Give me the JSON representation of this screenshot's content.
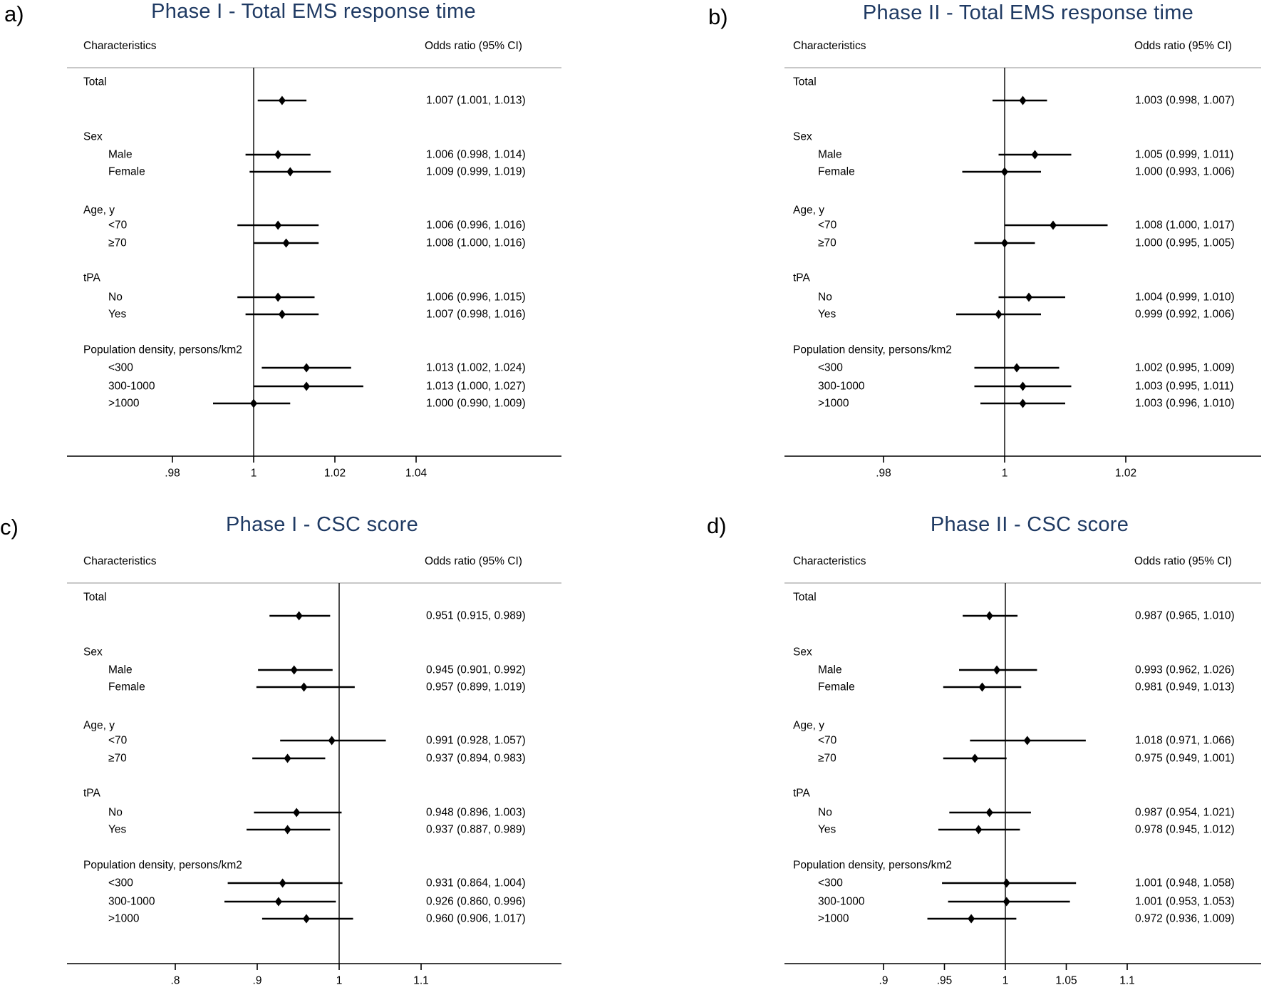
{
  "styles": {
    "title_color": "#1f3a63",
    "text_color": "#000000",
    "rule_color": "#c8c8c8",
    "background": "#ffffff"
  },
  "chart_data": [
    {
      "type": "scatter",
      "subtype": "forest-plot",
      "panel_label": "a)",
      "title": "Phase I - Total EMS response time",
      "columns": {
        "left": "Characteristics",
        "right": "Odds ratio (95% CI)"
      },
      "x_axis": {
        "ref_line": 1,
        "xlim": [
          0.954,
          1.076
        ],
        "ticks": [
          {
            "label": ".98",
            "value": 0.98
          },
          {
            "label": "1",
            "value": 1.0
          },
          {
            "label": "1.02",
            "value": 1.02
          },
          {
            "label": "1.04",
            "value": 1.04
          }
        ]
      },
      "rows": [
        {
          "kind": "group",
          "label": "Total"
        },
        {
          "kind": "estimate",
          "label": "",
          "or": 1.007,
          "ci_low": 1.001,
          "ci_high": 1.013,
          "text": "1.007 (1.001, 1.013)"
        },
        {
          "kind": "group",
          "label": "Sex"
        },
        {
          "kind": "estimate",
          "label": "Male",
          "or": 1.006,
          "ci_low": 0.998,
          "ci_high": 1.014,
          "text": "1.006 (0.998, 1.014)"
        },
        {
          "kind": "estimate",
          "label": "Female",
          "or": 1.009,
          "ci_low": 0.999,
          "ci_high": 1.019,
          "text": "1.009 (0.999, 1.019)"
        },
        {
          "kind": "group",
          "label": "Age, y"
        },
        {
          "kind": "estimate",
          "label": "<70",
          "or": 1.006,
          "ci_low": 0.996,
          "ci_high": 1.016,
          "text": "1.006 (0.996, 1.016)"
        },
        {
          "kind": "estimate",
          "label": "≥70",
          "or": 1.008,
          "ci_low": 1.0,
          "ci_high": 1.016,
          "text": "1.008 (1.000, 1.016)"
        },
        {
          "kind": "group",
          "label": "tPA"
        },
        {
          "kind": "estimate",
          "label": "No",
          "or": 1.006,
          "ci_low": 0.996,
          "ci_high": 1.015,
          "text": "1.006 (0.996, 1.015)"
        },
        {
          "kind": "estimate",
          "label": "Yes",
          "or": 1.007,
          "ci_low": 0.998,
          "ci_high": 1.016,
          "text": "1.007 (0.998, 1.016)"
        },
        {
          "kind": "group",
          "label": "Population density, persons/km2"
        },
        {
          "kind": "estimate",
          "label": "<300",
          "or": 1.013,
          "ci_low": 1.002,
          "ci_high": 1.024,
          "text": "1.013 (1.002, 1.024)"
        },
        {
          "kind": "estimate",
          "label": "300-1000",
          "or": 1.013,
          "ci_low": 1.0,
          "ci_high": 1.027,
          "text": "1.013 (1.000, 1.027)"
        },
        {
          "kind": "estimate",
          "label": ">1000",
          "or": 1.0,
          "ci_low": 0.99,
          "ci_high": 1.009,
          "text": "1.000 (0.990, 1.009)"
        }
      ]
    },
    {
      "type": "scatter",
      "subtype": "forest-plot",
      "panel_label": "b)",
      "title": "Phase II - Total EMS response time",
      "columns": {
        "left": "Characteristics",
        "right": "Odds ratio (95% CI)"
      },
      "x_axis": {
        "ref_line": 1,
        "xlim": [
          0.964,
          1.042
        ],
        "ticks": [
          {
            "label": ".98",
            "value": 0.98
          },
          {
            "label": "1",
            "value": 1.0
          },
          {
            "label": "1.02",
            "value": 1.02
          }
        ]
      },
      "rows": [
        {
          "kind": "group",
          "label": "Total"
        },
        {
          "kind": "estimate",
          "label": "",
          "or": 1.003,
          "ci_low": 0.998,
          "ci_high": 1.007,
          "text": "1.003 (0.998, 1.007)"
        },
        {
          "kind": "group",
          "label": "Sex"
        },
        {
          "kind": "estimate",
          "label": "Male",
          "or": 1.005,
          "ci_low": 0.999,
          "ci_high": 1.011,
          "text": "1.005 (0.999, 1.011)"
        },
        {
          "kind": "estimate",
          "label": "Female",
          "or": 1.0,
          "ci_low": 0.993,
          "ci_high": 1.006,
          "text": "1.000 (0.993, 1.006)"
        },
        {
          "kind": "group",
          "label": "Age, y"
        },
        {
          "kind": "estimate",
          "label": "<70",
          "or": 1.008,
          "ci_low": 1.0,
          "ci_high": 1.017,
          "text": "1.008 (1.000, 1.017)"
        },
        {
          "kind": "estimate",
          "label": "≥70",
          "or": 1.0,
          "ci_low": 0.995,
          "ci_high": 1.005,
          "text": "1.000 (0.995, 1.005)"
        },
        {
          "kind": "group",
          "label": "tPA"
        },
        {
          "kind": "estimate",
          "label": "No",
          "or": 1.004,
          "ci_low": 0.999,
          "ci_high": 1.01,
          "text": "1.004 (0.999, 1.010)"
        },
        {
          "kind": "estimate",
          "label": "Yes",
          "or": 0.999,
          "ci_low": 0.992,
          "ci_high": 1.006,
          "text": "0.999 (0.992, 1.006)"
        },
        {
          "kind": "group",
          "label": "Population density, persons/km2"
        },
        {
          "kind": "estimate",
          "label": "<300",
          "or": 1.002,
          "ci_low": 0.995,
          "ci_high": 1.009,
          "text": "1.002 (0.995, 1.009)"
        },
        {
          "kind": "estimate",
          "label": "300-1000",
          "or": 1.003,
          "ci_low": 0.995,
          "ci_high": 1.011,
          "text": "1.003 (0.995, 1.011)"
        },
        {
          "kind": "estimate",
          "label": ">1000",
          "or": 1.003,
          "ci_low": 0.996,
          "ci_high": 1.01,
          "text": "1.003 (0.996, 1.010)"
        }
      ]
    },
    {
      "type": "scatter",
      "subtype": "forest-plot",
      "panel_label": "c)",
      "title": "Phase I - CSC score",
      "columns": {
        "left": "Characteristics",
        "right": "Odds ratio (95% CI)"
      },
      "x_axis": {
        "ref_line": 1,
        "xlim": [
          0.67,
          1.27
        ],
        "ticks": [
          {
            "label": ".8",
            "value": 0.8
          },
          {
            "label": ".9",
            "value": 0.9
          },
          {
            "label": "1",
            "value": 1.0
          },
          {
            "label": "1.1",
            "value": 1.1
          }
        ]
      },
      "rows": [
        {
          "kind": "group",
          "label": "Total"
        },
        {
          "kind": "estimate",
          "label": "",
          "or": 0.951,
          "ci_low": 0.915,
          "ci_high": 0.989,
          "text": "0.951 (0.915, 0.989)"
        },
        {
          "kind": "group",
          "label": "Sex"
        },
        {
          "kind": "estimate",
          "label": "Male",
          "or": 0.945,
          "ci_low": 0.901,
          "ci_high": 0.992,
          "text": "0.945 (0.901, 0.992)"
        },
        {
          "kind": "estimate",
          "label": "Female",
          "or": 0.957,
          "ci_low": 0.899,
          "ci_high": 1.019,
          "text": "0.957 (0.899, 1.019)"
        },
        {
          "kind": "group",
          "label": "Age, y"
        },
        {
          "kind": "estimate",
          "label": "<70",
          "or": 0.991,
          "ci_low": 0.928,
          "ci_high": 1.057,
          "text": "0.991 (0.928, 1.057)"
        },
        {
          "kind": "estimate",
          "label": "≥70",
          "or": 0.937,
          "ci_low": 0.894,
          "ci_high": 0.983,
          "text": "0.937 (0.894, 0.983)"
        },
        {
          "kind": "group",
          "label": "tPA"
        },
        {
          "kind": "estimate",
          "label": "No",
          "or": 0.948,
          "ci_low": 0.896,
          "ci_high": 1.003,
          "text": "0.948 (0.896, 1.003)"
        },
        {
          "kind": "estimate",
          "label": "Yes",
          "or": 0.937,
          "ci_low": 0.887,
          "ci_high": 0.989,
          "text": "0.937 (0.887, 0.989)"
        },
        {
          "kind": "group",
          "label": "Population density, persons/km2"
        },
        {
          "kind": "estimate",
          "label": "<300",
          "or": 0.931,
          "ci_low": 0.864,
          "ci_high": 1.004,
          "text": "0.931 (0.864, 1.004)"
        },
        {
          "kind": "estimate",
          "label": "300-1000",
          "or": 0.926,
          "ci_low": 0.86,
          "ci_high": 0.996,
          "text": "0.926 (0.860, 0.996)"
        },
        {
          "kind": "estimate",
          "label": ">1000",
          "or": 0.96,
          "ci_low": 0.906,
          "ci_high": 1.017,
          "text": "0.960 (0.906, 1.017)"
        }
      ]
    },
    {
      "type": "scatter",
      "subtype": "forest-plot",
      "panel_label": "d)",
      "title": "Phase II - CSC score",
      "columns": {
        "left": "Characteristics",
        "right": "Odds ratio (95% CI)"
      },
      "x_axis": {
        "ref_line": 1,
        "xlim": [
          0.82,
          1.21
        ],
        "ticks": [
          {
            "label": ".9",
            "value": 0.9
          },
          {
            "label": ".95",
            "value": 0.95
          },
          {
            "label": "1",
            "value": 1.0
          },
          {
            "label": "1.05",
            "value": 1.05
          },
          {
            "label": "1.1",
            "value": 1.1
          }
        ]
      },
      "rows": [
        {
          "kind": "group",
          "label": "Total"
        },
        {
          "kind": "estimate",
          "label": "",
          "or": 0.987,
          "ci_low": 0.965,
          "ci_high": 1.01,
          "text": "0.987 (0.965, 1.010)"
        },
        {
          "kind": "group",
          "label": "Sex"
        },
        {
          "kind": "estimate",
          "label": "Male",
          "or": 0.993,
          "ci_low": 0.962,
          "ci_high": 1.026,
          "text": "0.993 (0.962, 1.026)"
        },
        {
          "kind": "estimate",
          "label": "Female",
          "or": 0.981,
          "ci_low": 0.949,
          "ci_high": 1.013,
          "text": "0.981 (0.949, 1.013)"
        },
        {
          "kind": "group",
          "label": "Age, y"
        },
        {
          "kind": "estimate",
          "label": "<70",
          "or": 1.018,
          "ci_low": 0.971,
          "ci_high": 1.066,
          "text": "1.018 (0.971, 1.066)"
        },
        {
          "kind": "estimate",
          "label": "≥70",
          "or": 0.975,
          "ci_low": 0.949,
          "ci_high": 1.001,
          "text": "0.975 (0.949, 1.001)"
        },
        {
          "kind": "group",
          "label": "tPA"
        },
        {
          "kind": "estimate",
          "label": "No",
          "or": 0.987,
          "ci_low": 0.954,
          "ci_high": 1.021,
          "text": "0.987 (0.954, 1.021)"
        },
        {
          "kind": "estimate",
          "label": "Yes",
          "or": 0.978,
          "ci_low": 0.945,
          "ci_high": 1.012,
          "text": "0.978 (0.945, 1.012)"
        },
        {
          "kind": "group",
          "label": "Population density, persons/km2"
        },
        {
          "kind": "estimate",
          "label": "<300",
          "or": 1.001,
          "ci_low": 0.948,
          "ci_high": 1.058,
          "text": "1.001 (0.948, 1.058)"
        },
        {
          "kind": "estimate",
          "label": "300-1000",
          "or": 1.001,
          "ci_low": 0.953,
          "ci_high": 1.053,
          "text": "1.001 (0.953, 1.053)"
        },
        {
          "kind": "estimate",
          "label": ">1000",
          "or": 0.972,
          "ci_low": 0.936,
          "ci_high": 1.009,
          "text": "0.972 (0.936, 1.009)"
        }
      ]
    }
  ]
}
